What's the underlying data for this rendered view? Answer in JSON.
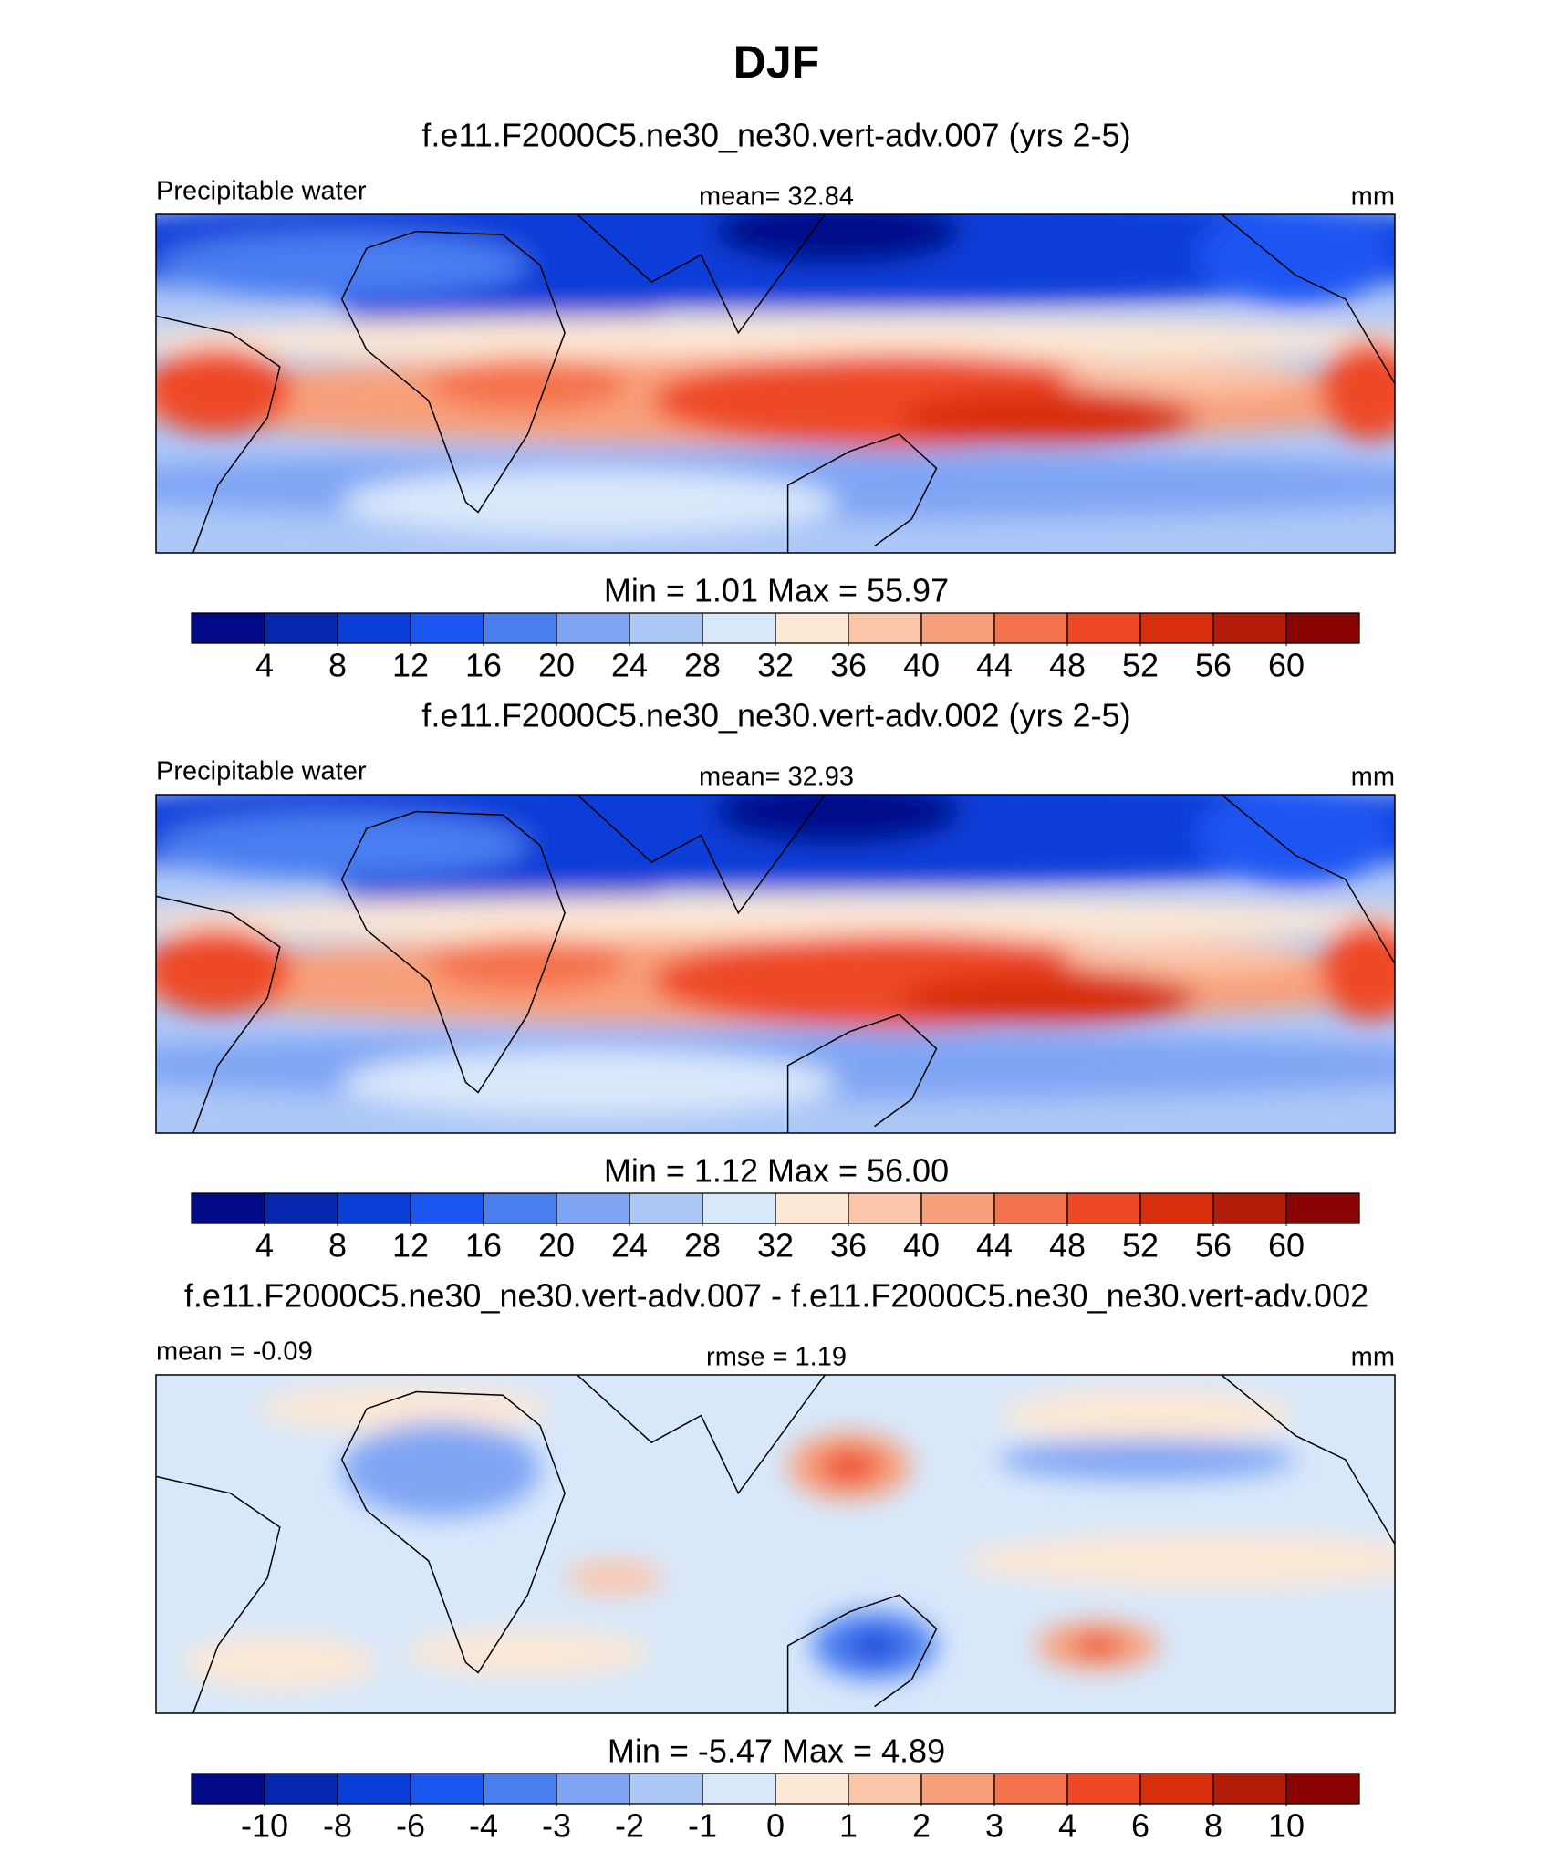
{
  "title": "DJF",
  "panels": [
    {
      "title": "f.e11.F2000C5.ne30_ne30.vert-adv.007 (yrs 2-5)",
      "left_label": "Precipitable water",
      "center_label": "mean=  32.84",
      "right_label": "mm",
      "stats": "Min =   1.01 Max =  55.97",
      "colorbar": {
        "colors": [
          "#020a8a",
          "#0628b0",
          "#0a3ed8",
          "#1a55f2",
          "#4a7df0",
          "#7fa5f4",
          "#adc7f7",
          "#d8e8fb",
          "#fde8d5",
          "#fcc6aa",
          "#f8a07c",
          "#f4724c",
          "#ee4825",
          "#d92e0c",
          "#b31c08",
          "#8a0404"
        ],
        "ticks": [
          4,
          8,
          12,
          16,
          20,
          24,
          28,
          32,
          36,
          40,
          44,
          48,
          52,
          56,
          60
        ]
      }
    },
    {
      "title": "f.e11.F2000C5.ne30_ne30.vert-adv.002 (yrs 2-5)",
      "left_label": "Precipitable water",
      "center_label": "mean=  32.93",
      "right_label": "mm",
      "stats": "Min =   1.12 Max =  56.00",
      "colorbar": {
        "colors": [
          "#020a8a",
          "#0628b0",
          "#0a3ed8",
          "#1a55f2",
          "#4a7df0",
          "#7fa5f4",
          "#adc7f7",
          "#d8e8fb",
          "#fde8d5",
          "#fcc6aa",
          "#f8a07c",
          "#f4724c",
          "#ee4825",
          "#d92e0c",
          "#b31c08",
          "#8a0404"
        ],
        "ticks": [
          4,
          8,
          12,
          16,
          20,
          24,
          28,
          32,
          36,
          40,
          44,
          48,
          52,
          56,
          60
        ]
      }
    },
    {
      "title": "f.e11.F2000C5.ne30_ne30.vert-adv.007 - f.e11.F2000C5.ne30_ne30.vert-adv.002",
      "left_label": "mean =  -0.09",
      "center_label": "rmse =   1.19",
      "right_label": "mm",
      "stats": "Min =  -5.47 Max =   4.89",
      "colorbar": {
        "colors": [
          "#020a8a",
          "#0628b0",
          "#0a3ed8",
          "#1a55f2",
          "#4a7df0",
          "#7fa5f4",
          "#adc7f7",
          "#d8e8fb",
          "#fde8d5",
          "#fcc6aa",
          "#f8a07c",
          "#f4724c",
          "#ee4825",
          "#d92e0c",
          "#b31c08",
          "#8a0404"
        ],
        "ticks": [
          -10,
          -8,
          -6,
          -4,
          -3,
          -2,
          -1,
          0,
          1,
          2,
          3,
          4,
          6,
          8,
          10
        ]
      }
    }
  ]
}
